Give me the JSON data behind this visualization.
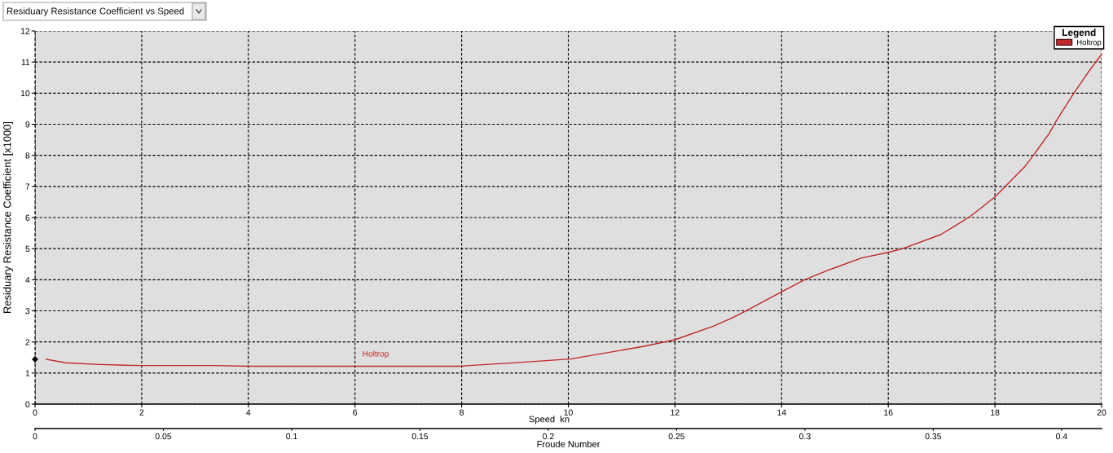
{
  "chart_data": {
    "type": "line",
    "title": "Residuary Resistance Coefficient vs Speed",
    "xlabel": "Speed  kn",
    "ylabel": "Residuary Resistance Coefficient [x1000]",
    "x2label": "Froude Number",
    "legend_title": "Legend",
    "legend": "top right",
    "grid": true,
    "xlim": [
      0,
      20
    ],
    "xticks": [
      0,
      2,
      4,
      6,
      8,
      10,
      12,
      14,
      16,
      18,
      20
    ],
    "ylim": [
      0,
      12
    ],
    "yticks": [
      0,
      1,
      2,
      3,
      4,
      5,
      6,
      7,
      8,
      9,
      10,
      11,
      12
    ],
    "x2lim": [
      0,
      0.4156
    ],
    "x2ticks": [
      0,
      0.05,
      0.1,
      0.15,
      0.2,
      0.25,
      0.3,
      0.35,
      0.4
    ],
    "series": [
      {
        "name": "Holtrop",
        "color": "#c0282a",
        "x": [
          0.21,
          0.57,
          1.12,
          1.66,
          2.0,
          3.36,
          4.0,
          5.0,
          6.0,
          7.0,
          8.0,
          8.14,
          8.9,
          10.04,
          11.42,
          12.0,
          12.73,
          13.09,
          13.38,
          14.0,
          14.43,
          14.94,
          15.5,
          16.0,
          16.27,
          16.98,
          17.23,
          17.54,
          18.0,
          18.57,
          18.72,
          19.02,
          19.15,
          19.48,
          19.74,
          20.0
        ],
        "values": [
          1.44,
          1.33,
          1.28,
          1.25,
          1.24,
          1.24,
          1.22,
          1.22,
          1.22,
          1.22,
          1.22,
          1.24,
          1.32,
          1.45,
          1.86,
          2.07,
          2.51,
          2.79,
          3.04,
          3.61,
          4.0,
          4.35,
          4.7,
          4.88,
          5.0,
          5.45,
          5.71,
          6.04,
          6.66,
          7.66,
          8.0,
          8.71,
          9.11,
          10.0,
          10.65,
          11.25
        ]
      },
      {
        "type": "scatter",
        "color": "#000000",
        "marker": "diamond",
        "x": [
          0
        ],
        "values": [
          1.44
        ]
      }
    ]
  }
}
